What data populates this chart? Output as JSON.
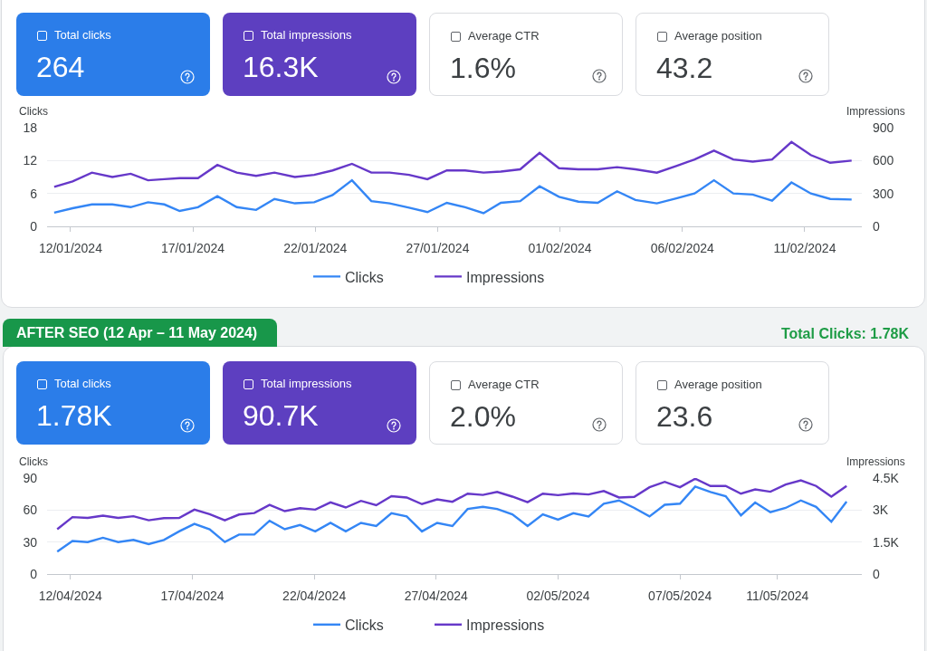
{
  "chart_data": [
    {
      "type": "other",
      "categories": [
        "Total clicks",
        "Total impressions",
        "Average CTR",
        "Average position"
      ],
      "value_labels": [
        "264",
        "16.3K",
        "1.6%",
        "43.2"
      ],
      "colors": [
        "#2b7de9",
        "#5d3fc0",
        "#ffffff",
        "#ffffff"
      ]
    },
    {
      "type": "line",
      "x": [
        "2024-01-11T08:00",
        "2024-01-12T02:00",
        "2024-01-12T21:00",
        "2024-01-13T17:00",
        "2024-01-14T11:00",
        "2024-01-15T04:00",
        "2024-01-15T20:00",
        "2024-01-16T11:00",
        "2024-01-17T05:00",
        "2024-01-18T00:00",
        "2024-01-18T19:00",
        "2024-01-19T14:00",
        "2024-01-20T08:00",
        "2024-01-21T04:00",
        "2024-01-21T23:00",
        "2024-01-22T17:00",
        "2024-01-23T12:00",
        "2024-01-24T07:00",
        "2024-01-25T01:00",
        "2024-01-25T20:00",
        "2024-01-26T14:00",
        "2024-01-27T09:00",
        "2024-01-28T03:00",
        "2024-01-28T21:00",
        "2024-01-29T14:00",
        "2024-01-30T09:00",
        "2024-01-31T04:00",
        "2024-01-31T23:00",
        "2024-02-01T18:00",
        "2024-02-02T13:00",
        "2024-02-03T08:00",
        "2024-02-04T02:00",
        "2024-02-04T23:00",
        "2024-02-05T18:00",
        "2024-02-06T12:00",
        "2024-02-07T07:00",
        "2024-02-08T02:00",
        "2024-02-08T21:00",
        "2024-02-09T16:00",
        "2024-02-10T11:00",
        "2024-02-11T06:00",
        "2024-02-12T01:00",
        "2024-02-12T22:00"
      ],
      "series": [
        {
          "name": "Clicks",
          "color": "#3486f5",
          "values": [
            2.5,
            3.3,
            4.0,
            4.0,
            3.5,
            4.4,
            4.0,
            2.8,
            3.5,
            5.5,
            3.5,
            3.0,
            5.0,
            4.2,
            4.4,
            5.7,
            8.4,
            4.6,
            4.2,
            3.4,
            2.6,
            4.3,
            3.5,
            2.4,
            4.3,
            4.6,
            7.3,
            5.4,
            4.5,
            4.3,
            6.4,
            4.8,
            4.2,
            5.1,
            6.0,
            8.4,
            6.0,
            5.8,
            4.7,
            8.0,
            6.0,
            5.0,
            4.9
          ]
        },
        {
          "name": "Impressions",
          "color": "#6638c9",
          "axis": "y2",
          "values": [
            360,
            410,
            490,
            450,
            480,
            420,
            430,
            440,
            440,
            560,
            490,
            460,
            490,
            450,
            470,
            510,
            570,
            490,
            490,
            470,
            430,
            510,
            510,
            490,
            500,
            520,
            670,
            530,
            520,
            520,
            540,
            520,
            490,
            550,
            610,
            690,
            610,
            590,
            610,
            770,
            650,
            580,
            600
          ]
        }
      ],
      "xlim": [
        "2024-01-11T01:00",
        "2024-02-13T08:00"
      ],
      "xticks": [
        {
          "value": "2024-01-12",
          "label": "12/01/2024"
        },
        {
          "value": "2024-01-17",
          "label": "17/01/2024"
        },
        {
          "value": "2024-01-22",
          "label": "22/01/2024"
        },
        {
          "value": "2024-01-27",
          "label": "27/01/2024"
        },
        {
          "value": "2024-02-01",
          "label": "01/02/2024"
        },
        {
          "value": "2024-02-06",
          "label": "06/02/2024"
        },
        {
          "value": "2024-02-11",
          "label": "11/02/2024"
        }
      ],
      "ylim": [
        0,
        18
      ],
      "yticks": [
        0,
        6,
        12,
        18
      ],
      "y2lim": [
        0,
        900
      ],
      "y2ticks": [
        0,
        300,
        600,
        900
      ],
      "ylabel": "Clicks",
      "y2label": "Impressions",
      "grid": "y",
      "legend": "bottom"
    },
    {
      "type": "other",
      "title": "AFTER SEO (12 Apr – 11 May 2024)",
      "annotations": [
        "Total Clicks: 1.78K"
      ],
      "categories": [
        "Total clicks",
        "Total impressions",
        "Average CTR",
        "Average position"
      ],
      "value_labels": [
        "1.78K",
        "90.7K",
        "2.0%",
        "23.6"
      ],
      "colors": [
        "#2b7de9",
        "#5d3fc0",
        "#ffffff",
        "#ffffff"
      ]
    },
    {
      "type": "line",
      "x": [
        "2024-04-11T11:00",
        "2024-04-12T02:00",
        "2024-04-12T17:00",
        "2024-04-13T08:00",
        "2024-04-13T23:00",
        "2024-04-14T14:00",
        "2024-04-15T05:00",
        "2024-04-15T20:00",
        "2024-04-16T11:00",
        "2024-04-17T02:00",
        "2024-04-17T17:00",
        "2024-04-18T08:00",
        "2024-04-18T22:00",
        "2024-04-19T13:00",
        "2024-04-20T04:00",
        "2024-04-20T19:00",
        "2024-04-21T10:00",
        "2024-04-22T01:00",
        "2024-04-22T16:00",
        "2024-04-23T07:00",
        "2024-04-23T22:00",
        "2024-04-24T13:00",
        "2024-04-25T04:00",
        "2024-04-25T19:00",
        "2024-04-26T10:00",
        "2024-04-27T01:00",
        "2024-04-27T16:00",
        "2024-04-28T07:00",
        "2024-04-28T22:00",
        "2024-04-29T12:00",
        "2024-04-30T03:00",
        "2024-04-30T18:00",
        "2024-05-01T09:00",
        "2024-05-02T00:00",
        "2024-05-02T15:00",
        "2024-05-03T06:00",
        "2024-05-03T21:00",
        "2024-05-04T12:00",
        "2024-05-05T03:00",
        "2024-05-05T18:00",
        "2024-05-06T09:00",
        "2024-05-07T00:00",
        "2024-05-07T15:00",
        "2024-05-08T06:00",
        "2024-05-08T21:00",
        "2024-05-09T12:00",
        "2024-05-10T02:00",
        "2024-05-10T17:00",
        "2024-05-11T08:00",
        "2024-05-11T23:00",
        "2024-05-12T14:00",
        "2024-05-13T05:00",
        "2024-05-13T20:00"
      ],
      "series": [
        {
          "name": "Clicks",
          "color": "#3486f5",
          "values": [
            21,
            31,
            30,
            34,
            30,
            32,
            28,
            32,
            40,
            47,
            42,
            30,
            37,
            37,
            50,
            42,
            46,
            40,
            48,
            40,
            48,
            45,
            57,
            54,
            40,
            48,
            45,
            61,
            63,
            61,
            56,
            45,
            56,
            51,
            57,
            54,
            66,
            69,
            62,
            54,
            65,
            66,
            82,
            77,
            73,
            55,
            67,
            58,
            62,
            69,
            63,
            49,
            68
          ]
        },
        {
          "name": "Impressions",
          "color": "#6638c9",
          "axis": "y2",
          "values": [
            2100,
            2670,
            2630,
            2740,
            2630,
            2710,
            2520,
            2620,
            2630,
            3020,
            2810,
            2520,
            2790,
            2860,
            3240,
            2950,
            3090,
            3020,
            3360,
            3120,
            3430,
            3230,
            3650,
            3590,
            3280,
            3500,
            3390,
            3770,
            3710,
            3850,
            3630,
            3370,
            3770,
            3700,
            3780,
            3730,
            3890,
            3590,
            3620,
            4070,
            4320,
            4070,
            4470,
            4130,
            4130,
            3770,
            3970,
            3860,
            4200,
            4390,
            4130,
            3630,
            4130
          ]
        }
      ],
      "xlim": [
        "2024-04-11T01:00",
        "2024-05-14T11:00"
      ],
      "xticks": [
        {
          "value": "2024-04-12",
          "label": "12/04/2024"
        },
        {
          "value": "2024-04-17",
          "label": "17/04/2024"
        },
        {
          "value": "2024-04-22",
          "label": "22/04/2024"
        },
        {
          "value": "2024-04-27",
          "label": "27/04/2024"
        },
        {
          "value": "2024-05-02",
          "label": "02/05/2024"
        },
        {
          "value": "2024-05-07",
          "label": "07/05/2024"
        },
        {
          "value": "2024-05-11",
          "label": "11/05/2024"
        }
      ],
      "ylim": [
        0,
        90
      ],
      "yticks": [
        0,
        30,
        60,
        90
      ],
      "y2lim": [
        0,
        4500
      ],
      "y2ticks": [
        0,
        {
          "value": 1500,
          "label": "1.5K"
        },
        {
          "value": 3000,
          "label": "3K"
        },
        {
          "value": 4500,
          "label": "4.5K"
        }
      ],
      "ylabel": "Clicks",
      "y2label": "Impressions",
      "grid": "y",
      "legend": "bottom"
    }
  ]
}
